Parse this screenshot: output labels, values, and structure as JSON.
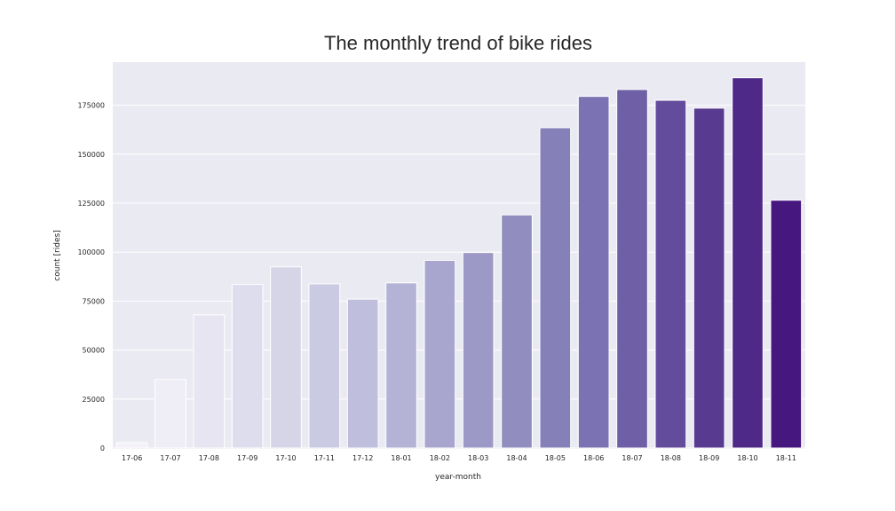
{
  "chart_data": {
    "type": "bar",
    "title": "The monthly trend of bike rides",
    "xlabel": "year-month",
    "ylabel": "count [rides]",
    "categories": [
      "17-06",
      "17-07",
      "17-08",
      "17-09",
      "17-10",
      "17-11",
      "17-12",
      "18-01",
      "18-02",
      "18-03",
      "18-04",
      "18-05",
      "18-06",
      "18-07",
      "18-08",
      "18-09",
      "18-10",
      "18-11"
    ],
    "values": [
      2700,
      35000,
      68000,
      83500,
      92500,
      83800,
      76000,
      84300,
      95800,
      99800,
      119000,
      163500,
      179500,
      183000,
      177500,
      173500,
      189000,
      126500
    ],
    "ylim": [
      0,
      197000
    ],
    "yticks": [
      0,
      25000,
      50000,
      75000,
      100000,
      125000,
      150000,
      175000
    ],
    "grid": true,
    "colors": [
      "#f4f1f8",
      "#efedf5",
      "#e7e5f1",
      "#dedded",
      "#d6d5e8",
      "#cbcae3",
      "#bfbedc",
      "#b4b3d6",
      "#a8a6ce",
      "#9d99c7",
      "#918dbf",
      "#8581b8",
      "#7a72b2",
      "#6e5fa6",
      "#634c9b",
      "#583a91",
      "#4e2988",
      "#46187f"
    ],
    "background": "#eaeaf2"
  }
}
